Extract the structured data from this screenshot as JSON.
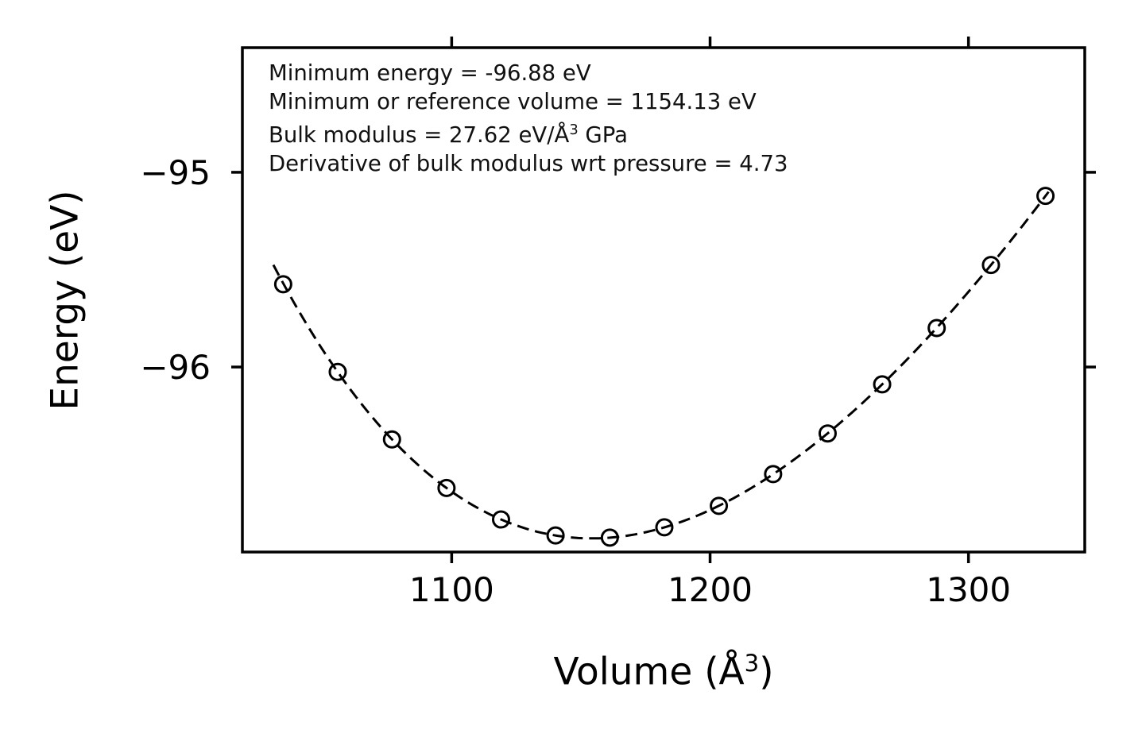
{
  "figure": {
    "annotation": {
      "line1": "Minimum energy = -96.88 eV",
      "line2": "Minimum or reference volume = 1154.13 eV",
      "line3_pre": "Bulk modulus = 27.62 eV/Å",
      "line3_sup": "3",
      "line3_post": " GPa",
      "line4": "Derivative of bulk modulus wrt pressure = 4.73"
    },
    "ylabel": "Energy (eV)",
    "xlabel_pre": "Volume (Å",
    "xlabel_sup": "3",
    "xlabel_post": ")"
  },
  "chart_data": {
    "type": "scatter",
    "title": "",
    "xlabel": "Volume (Å^3)",
    "ylabel": "Energy (eV)",
    "xlim": [
      1019,
      1345
    ],
    "ylim": [
      -96.95,
      -94.36
    ],
    "grid": false,
    "legend": "none",
    "xticks": [
      {
        "value": 1100,
        "label": "1100"
      },
      {
        "value": 1200,
        "label": "1200"
      },
      {
        "value": 1300,
        "label": "1300"
      }
    ],
    "yticks": [
      {
        "value": -95,
        "label": "−95"
      },
      {
        "value": -96,
        "label": "−96"
      }
    ],
    "series": [
      {
        "name": "computed-energies",
        "marker": "open-circle",
        "line": "none",
        "x": [
          1034.8,
          1055.9,
          1076.9,
          1098.0,
          1119.1,
          1140.2,
          1161.2,
          1182.3,
          1203.4,
          1224.4,
          1245.5,
          1266.6,
          1287.7,
          1308.7,
          1329.8
        ],
        "y": [
          -95.575,
          -96.025,
          -96.372,
          -96.621,
          -96.783,
          -96.865,
          -96.876,
          -96.823,
          -96.713,
          -96.55,
          -96.341,
          -96.089,
          -95.8,
          -95.476,
          -95.121
        ]
      },
      {
        "name": "birch-murnaghan-fit",
        "marker": "none",
        "line": "dashed"
      }
    ],
    "fit": {
      "E0_eV": -96.88,
      "V0_A3": 1154.13,
      "B_GPa": 27.62,
      "Bp": 4.73,
      "curve_v_range": [
        1031,
        1331
      ]
    },
    "annotations": [
      "Minimum energy = -96.88 eV",
      "Minimum or reference volume = 1154.13 eV",
      "Bulk modulus = 27.62 eV/Å³ GPa",
      "Derivative of bulk modulus wrt pressure = 4.73"
    ],
    "colors": {
      "line": "#000000",
      "marker_edge": "#000000",
      "background": "#ffffff"
    }
  }
}
